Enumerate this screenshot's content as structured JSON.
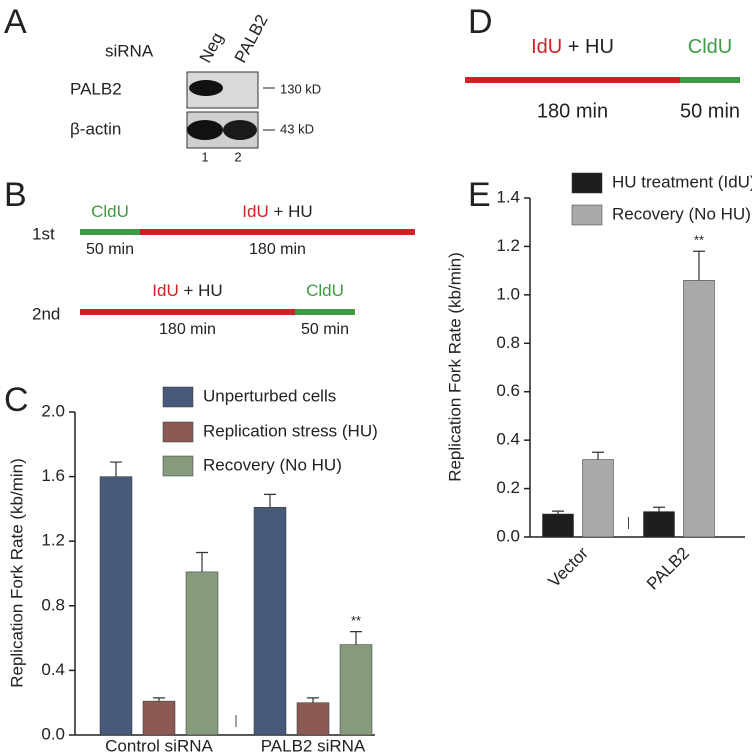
{
  "panels": {
    "A": {
      "letter": "A",
      "row_title": "siRNA",
      "lanes": [
        "Neg",
        "PALB2"
      ],
      "blots": [
        {
          "label": "PALB2",
          "size": "130 kD"
        },
        {
          "label": "β-actin",
          "size": "43 kD"
        }
      ],
      "lane_numbers": [
        "1",
        "2"
      ]
    },
    "B": {
      "letter": "B",
      "rows": [
        {
          "label": "1st",
          "segments": [
            {
              "name": "CldU",
              "duration": "50 min",
              "color": "#3f9a46"
            },
            {
              "name": "IdU",
              "with": "+ HU",
              "duration": "180 min",
              "color": "#d02127"
            }
          ]
        },
        {
          "label": "2nd",
          "segments": [
            {
              "name": "IdU",
              "with": "+ HU",
              "duration": "180 min",
              "color": "#d02127"
            },
            {
              "name": "CldU",
              "duration": "50 min",
              "color": "#3f9a46"
            }
          ]
        }
      ]
    },
    "C": {
      "letter": "C"
    },
    "D": {
      "letter": "D",
      "segments": [
        {
          "name": "IdU",
          "with": "+ HU",
          "duration": "180 min",
          "color": "#d02127"
        },
        {
          "name": "CldU",
          "duration": "50 min",
          "color": "#3f9a46"
        }
      ]
    },
    "E": {
      "letter": "E"
    }
  },
  "chart_data": [
    {
      "type": "bar",
      "y_label": "Replication Fork Rate (kb/min)",
      "categories": [
        "Control siRNA",
        "PALB2 siRNA"
      ],
      "series": [
        {
          "name": "Unperturbed cells",
          "color": "#475a7a",
          "values": [
            1.6,
            1.41
          ],
          "errors": [
            0.09,
            0.08
          ]
        },
        {
          "name": "Replication stress (HU)",
          "color": "#8b5a55",
          "values": [
            0.21,
            0.2
          ],
          "errors": [
            0.02,
            0.03
          ]
        },
        {
          "name": "Recovery (No HU)",
          "color": "#869b7c",
          "values": [
            1.01,
            0.56
          ],
          "errors": [
            0.12,
            0.08
          ]
        }
      ],
      "ylim": [
        0,
        2.0
      ],
      "yticks": [
        {
          "value": 0,
          "label": "0.0"
        },
        {
          "value": 0.4,
          "label": "0.4"
        },
        {
          "value": 0.8,
          "label": "0.8"
        },
        {
          "value": 1.2,
          "label": "1.2"
        },
        {
          "value": 1.6,
          "label": "1.6"
        },
        {
          "value": 2.0,
          "label": "2.0"
        }
      ],
      "annotations": [
        "**"
      ]
    },
    {
      "type": "bar",
      "y_label": "Replication Fork Rate (kb/min)",
      "categories": [
        "Vector",
        "PALB2"
      ],
      "series": [
        {
          "name": "HU treatment (IdU)",
          "color": "#1e1e1e",
          "values": [
            0.095,
            0.105
          ],
          "errors": [
            0.012,
            0.018
          ]
        },
        {
          "name": "Recovery (No HU)",
          "color": "#a9a9a9",
          "values": [
            0.32,
            1.06
          ],
          "errors": [
            0.03,
            0.12
          ]
        }
      ],
      "ylim": [
        0,
        1.4
      ],
      "yticks": [
        {
          "value": 0,
          "label": "0.0"
        },
        {
          "value": 0.2,
          "label": "0.2"
        },
        {
          "value": 0.4,
          "label": "0.4"
        },
        {
          "value": 0.6,
          "label": "0.6"
        },
        {
          "value": 0.8,
          "label": "0.8"
        },
        {
          "value": 1.0,
          "label": "1.0"
        },
        {
          "value": 1.2,
          "label": "1.2"
        },
        {
          "value": 1.4,
          "label": "1.4"
        }
      ],
      "annotations": [
        "**"
      ]
    }
  ]
}
